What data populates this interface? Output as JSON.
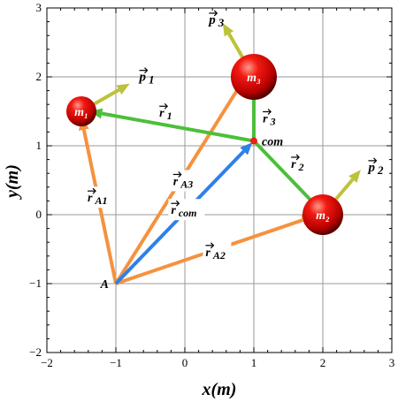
{
  "axes": {
    "xlabel": "x(m)",
    "ylabel": "y(m)",
    "xticks": [
      "−2",
      "−1",
      "0",
      "1",
      "2",
      "3"
    ],
    "yticks": [
      "−2",
      "−1",
      "0",
      "1",
      "2",
      "3"
    ],
    "xlim": [
      -2,
      3
    ],
    "ylim": [
      -2,
      3
    ],
    "grid": true
  },
  "points": {
    "A": {
      "label": "A",
      "x": -1,
      "y": -1
    },
    "com": {
      "label": "com",
      "x": 1,
      "y": 1.07
    }
  },
  "masses": [
    {
      "id": "m1",
      "label": "m₁",
      "x": -1.5,
      "y": 1.5
    },
    {
      "id": "m2",
      "label": "m₂",
      "x": 2,
      "y": 0
    },
    {
      "id": "m3",
      "label": "m₃",
      "x": 1,
      "y": 2
    }
  ],
  "vectors": {
    "r_A1": {
      "label": "r A1"
    },
    "r_A2": {
      "label": "r A2"
    },
    "r_A3": {
      "label": "r A3"
    },
    "r_com": {
      "label": "r com"
    },
    "r_1": {
      "label": "r 1"
    },
    "r_2": {
      "label": "r 2"
    },
    "r_3": {
      "label": "r 3"
    },
    "p_1": {
      "label": "p 1"
    },
    "p_2": {
      "label": "p 2"
    },
    "p_3": {
      "label": "p 3"
    }
  },
  "colors": {
    "orange": "#f5923e",
    "blue": "#2f80e8",
    "green": "#4cbf3a",
    "olive": "#bcc23a",
    "com_dot": "#e8201a",
    "grid": "#9a9a9a"
  }
}
